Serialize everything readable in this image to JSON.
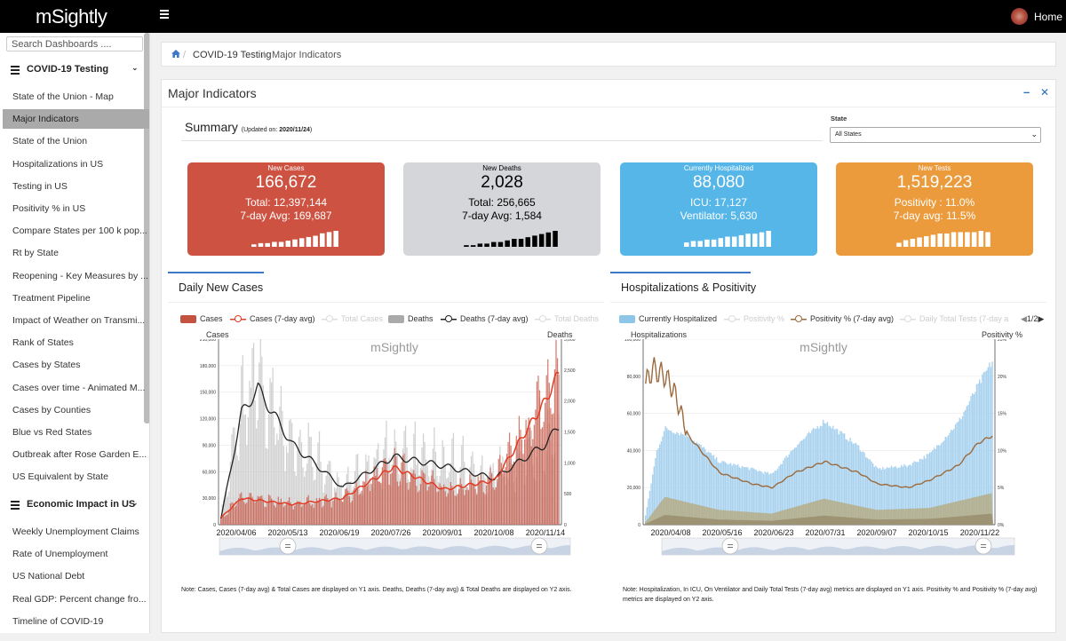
{
  "app": {
    "logo": "mSightly",
    "home_label": "Home"
  },
  "sidebar": {
    "search_placeholder": "Search Dashboards ....",
    "group1": "COVID-19 Testing",
    "items": [
      "State of the Union - Map",
      "Major Indicators",
      "State of the Union",
      "Hospitalizations in US",
      "Testing in US",
      "Positivity % in US",
      "Compare States per 100 k pop...",
      "Rt by State",
      "Reopening - Key Measures by ...",
      "Treatment Pipeline",
      "Impact of Weather on Transmi...",
      "Rank of States",
      "Cases by States",
      "Cases over time - Animated M...",
      "Cases by Counties",
      "Blue vs Red States",
      "Outbreak after Rose Garden E...",
      "US Equivalent by State"
    ],
    "group2": "Economic Impact in US",
    "items2": [
      "Weekly Unemployment Claims",
      "Rate of Unemployment",
      "US National Debt",
      "Real GDP: Percent change fro...",
      "Timeline of COVID-19"
    ]
  },
  "breadcrumb": {
    "level1": "COVID-19 Testing",
    "level2": "Major Indicators"
  },
  "panel": {
    "title": "Major Indicators"
  },
  "summary": {
    "title": "Summary",
    "updated_prefix": "(Updated on: ",
    "updated_date": "2020/11/24",
    "updated_suffix": ")",
    "state_label": "State",
    "state_value": "All States"
  },
  "cards": [
    {
      "label": "New Cases",
      "value": "166,672",
      "line1": "Total: 12,397,144",
      "line2": "7-day Avg: 169,687",
      "color": "#cd5241",
      "bar_color": "#ffffff",
      "spark": [
        2,
        3,
        3,
        4,
        4,
        5,
        6,
        7,
        8,
        9,
        11,
        12,
        13
      ]
    },
    {
      "label": "New Deaths",
      "value": "2,028",
      "line1": "Total: 256,665",
      "line2": "7-day Avg: 1,584",
      "color": "#d5d6d9",
      "bar_color": "#000000",
      "spark": [
        1,
        1,
        2,
        2,
        3,
        3,
        4,
        5,
        5,
        6,
        7,
        8,
        9,
        10
      ]
    },
    {
      "label": "Currently Hospitalized",
      "value": "88,080",
      "line1": "ICU: 17,127",
      "line2": "Ventilator: 5,630",
      "color": "#56b6e8",
      "bar_color": "#ffffff",
      "spark": [
        3,
        4,
        4,
        5,
        5,
        6,
        7,
        7,
        8,
        9,
        9,
        10,
        11
      ]
    },
    {
      "label": "New Tests",
      "value": "1,519,223",
      "line1": "Positivity : 11.0%",
      "line2": "7-day avg: 11.5%",
      "color": "#eb9b3c",
      "bar_color": "#ffffff",
      "spark": [
        3,
        5,
        6,
        7,
        8,
        9,
        10,
        10,
        11,
        11,
        11,
        11,
        12,
        11
      ]
    }
  ],
  "chart1": {
    "title": "Daily New Cases",
    "legend": [
      {
        "label": "Cases",
        "dim": false
      },
      {
        "label": "Cases (7-day avg)",
        "dim": false
      },
      {
        "label": "Total Cases",
        "dim": true
      },
      {
        "label": "Deaths",
        "dim": false
      },
      {
        "label": "Deaths (7-day avg)",
        "dim": false
      },
      {
        "label": "Total Deaths",
        "dim": true
      }
    ],
    "ylabel_left": "Cases",
    "ylabel_right": "Deaths",
    "watermark": "mSightly",
    "note": "Note: Cases, Cases (7-day avg) & Total Cases are displayed on Y1 axis. Deaths, Deaths (7-day avg) & Total Deaths are displayed on Y2 axis."
  },
  "chart2": {
    "title": "Hospitalizations & Positivity",
    "legend": [
      {
        "label": "Currently Hospitalized",
        "dim": false
      },
      {
        "label": "Positivity %",
        "dim": true
      },
      {
        "label": "Positivity % (7-day avg)",
        "dim": false
      },
      {
        "label": "Daily Total Tests (7-day a",
        "dim": true
      }
    ],
    "pager": "1/2",
    "ylabel_left": "Hospitalizations",
    "ylabel_right": "Positivity %",
    "watermark": "mSightly",
    "note_line1": "Note: Hospitalization, In ICU, On Ventilator and Daily Total Tests (7-day avg) metrics are displayed on Y1 axis. Positivity % and Positivity %",
    "note_line2": "(7-day avg) metrics are displayed on Y2 axis."
  },
  "chart_data": [
    {
      "type": "bar",
      "title": "Daily New Cases",
      "xlabel": "",
      "ylabel": "Cases",
      "y2label": "Deaths",
      "ylim": [
        0,
        210000
      ],
      "y2lim": [
        0,
        3000
      ],
      "yticks": [
        "0",
        "30,000",
        "60,000",
        "90,000",
        "120,000",
        "150,000",
        "180,000",
        "210,000"
      ],
      "y2ticks": [
        "0",
        "500",
        "1,000",
        "1,500",
        "2,000",
        "2,500",
        "3,000"
      ],
      "x_ticks": [
        "2020/04/06",
        "2020/05/13",
        "2020/06/19",
        "2020/07/26",
        "2020/09/01",
        "2020/10/08",
        "2020/11/14"
      ],
      "series": [
        {
          "name": "Cases (7-day avg)",
          "x": [
            "03/22",
            "04/06",
            "05/13",
            "06/19",
            "07/26",
            "09/01",
            "10/08",
            "11/14",
            "11/24"
          ],
          "values": [
            8000,
            30000,
            23000,
            30000,
            65000,
            40000,
            50000,
            140000,
            172000
          ]
        },
        {
          "name": "Deaths (7-day avg)",
          "x": [
            "03/22",
            "04/06",
            "04/18",
            "05/13",
            "06/19",
            "07/26",
            "09/01",
            "10/08",
            "11/14",
            "11/24"
          ],
          "values": [
            100,
            1800,
            2200,
            1300,
            600,
            1100,
            950,
            750,
            1300,
            1600
          ]
        }
      ]
    },
    {
      "type": "area",
      "title": "Hospitalizations & Positivity",
      "xlabel": "",
      "ylabel": "Hospitalizations",
      "y2label": "Positivity %",
      "ylim": [
        0,
        100000
      ],
      "y2lim": [
        0,
        25
      ],
      "yticks": [
        "0",
        "20,000",
        "40,000",
        "60,000",
        "80,000",
        "100,000"
      ],
      "y2ticks": [
        "0%",
        "5%",
        "10%",
        "15%",
        "20%",
        "25%"
      ],
      "x_ticks": [
        "2020/04/08",
        "2020/05/16",
        "2020/06/23",
        "2020/07/31",
        "2020/09/07",
        "2020/10/15",
        "2020/11/22"
      ],
      "series": [
        {
          "name": "Currently Hospitalized",
          "x": [
            "03/25",
            "04/08",
            "05/16",
            "06/23",
            "07/31",
            "09/07",
            "10/15",
            "11/22"
          ],
          "values": [
            5000,
            52000,
            34000,
            27000,
            56000,
            30000,
            38000,
            85000
          ]
        },
        {
          "name": "Positivity % (7-day avg)",
          "x": [
            "03/25",
            "04/08",
            "05/16",
            "06/23",
            "07/31",
            "09/07",
            "10/15",
            "11/22"
          ],
          "values": [
            19,
            20,
            7,
            5,
            8.5,
            5.5,
            6,
            12
          ]
        }
      ]
    }
  ]
}
